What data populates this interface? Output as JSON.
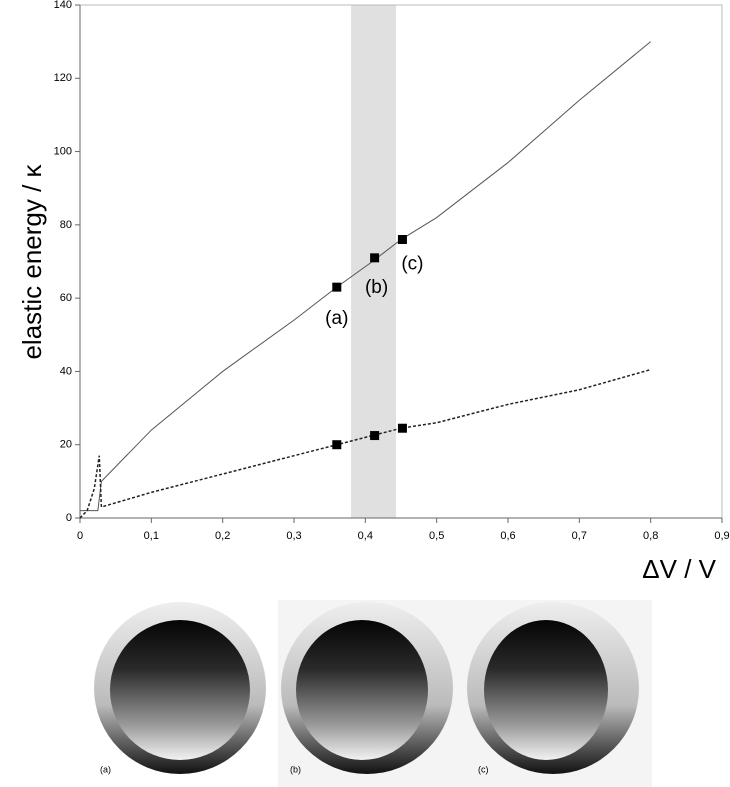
{
  "chart_data": {
    "type": "line",
    "y_label": "elastic energy / κ",
    "x_label": "ΔV / V",
    "xlim": [
      0,
      0.9
    ],
    "ylim": [
      0,
      140
    ],
    "xticks": [
      0,
      {
        "value": 0.1,
        "label": "0,1"
      },
      {
        "value": 0.2,
        "label": "0,2"
      },
      {
        "value": 0.3,
        "label": "0,3"
      },
      {
        "value": 0.4,
        "label": "0,4"
      },
      {
        "value": 0.5,
        "label": "0,5"
      },
      {
        "value": 0.6,
        "label": "0,6"
      },
      {
        "value": 0.7,
        "label": "0,7"
      },
      {
        "value": 0.8,
        "label": "0,8"
      },
      {
        "value": 0.9,
        "label": "0,9"
      }
    ],
    "yticks": [
      0,
      20,
      40,
      60,
      80,
      100,
      120,
      140
    ],
    "highlight_range": [
      0.38,
      0.443
    ],
    "highlight_color": "#e0e0e0",
    "series": [
      {
        "color": "#555555",
        "line_style": "solid",
        "x": [
          0,
          0.025,
          0.03,
          0.1,
          0.2,
          0.3,
          0.36,
          0.41,
          0.45,
          0.5,
          0.6,
          0.7,
          0.8
        ],
        "values": [
          2,
          2,
          10,
          24,
          40,
          54,
          63,
          70,
          76,
          82,
          97,
          114,
          130
        ]
      },
      {
        "color": "#222222",
        "line_style": "dashed",
        "x": [
          0,
          0.01,
          0.02,
          0.027,
          0.03,
          0.1,
          0.2,
          0.3,
          0.36,
          0.41,
          0.45,
          0.5,
          0.6,
          0.7,
          0.8
        ],
        "values": [
          0,
          2,
          8,
          17,
          3,
          7,
          12,
          17,
          20,
          22.5,
          24.5,
          26,
          31,
          35,
          40.5
        ]
      }
    ],
    "markers": [
      {
        "color": "#000000",
        "x": [
          0.36,
          0.413,
          0.452
        ],
        "values": [
          63,
          71,
          76
        ],
        "labels": [
          "(a)",
          "(b)",
          "(c)"
        ]
      },
      {
        "color": "#000000",
        "x": [
          0.36,
          0.413,
          0.452
        ],
        "values": [
          20,
          22.5,
          24.5
        ]
      }
    ]
  },
  "image_captions": [
    "(a)",
    "(b)",
    "(c)"
  ]
}
